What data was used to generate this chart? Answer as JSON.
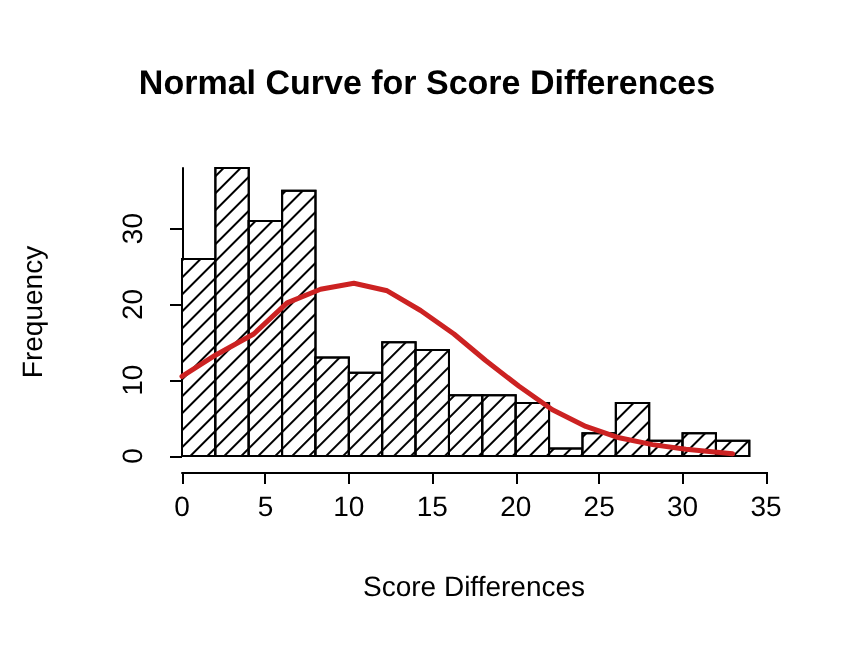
{
  "chart_data": {
    "type": "histogram",
    "title": "Normal Curve for Score Differences",
    "xlabel": "Score Differences",
    "ylabel": "Frequency",
    "bins": [
      0,
      2,
      4,
      6,
      8,
      10,
      12,
      14,
      16,
      18,
      20,
      22,
      24,
      26,
      28,
      30,
      32,
      34
    ],
    "values": [
      26,
      38,
      31,
      35,
      13,
      11,
      15,
      14,
      8,
      8,
      7,
      1,
      3,
      7,
      2,
      3,
      2
    ],
    "color": "#ffffff",
    "series": [
      {
        "type": "line",
        "color": "#cc2222",
        "x": [
          0,
          2,
          4.3,
          6.3,
          8.3,
          10.3,
          12.3,
          14.3,
          16.3,
          18.2,
          20.2,
          22.2,
          24.2,
          26.2,
          28.2,
          30.2,
          33
        ],
        "values": [
          10.5,
          13.3,
          16.1,
          20.2,
          22,
          22.8,
          21.8,
          19.2,
          16.1,
          12.6,
          9.2,
          6.1,
          3.9,
          2.4,
          1.5,
          0.9,
          0.3
        ]
      }
    ],
    "xlim": [
      0,
      35
    ],
    "xticks": [
      0,
      5,
      10,
      15,
      20,
      25,
      30,
      35
    ],
    "ylim": [
      0,
      38
    ],
    "yticks": [
      0,
      10,
      20,
      30
    ],
    "grid": false
  }
}
